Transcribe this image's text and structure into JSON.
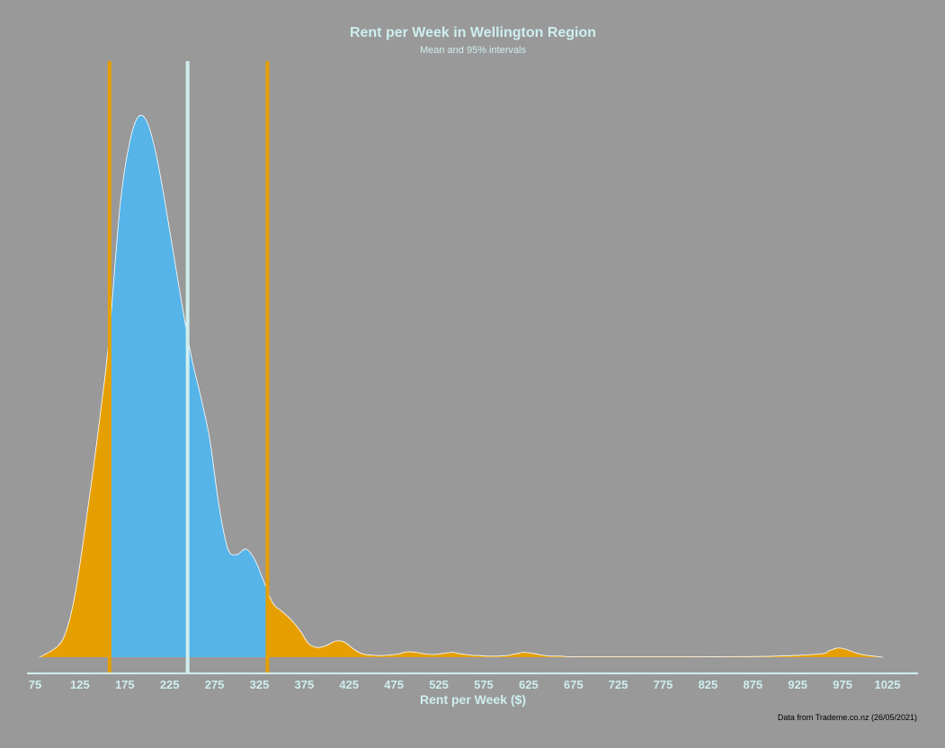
{
  "chart_data": {
    "type": "area",
    "title": "Rent per Week in Wellington Region",
    "subtitle": "Mean and 95% intervals",
    "xlabel": "Rent per Week ($)",
    "ylabel": "",
    "caption": "Data from Trademe.co.nz (26/05/2021)",
    "xlim": [
      75,
      1025
    ],
    "ylim": [
      0,
      1
    ],
    "grid": false,
    "xticks": [
      "75",
      "125",
      "175",
      "225",
      "275",
      "325",
      "375",
      "425",
      "475",
      "525",
      "575",
      "625",
      "675",
      "725",
      "775",
      "825",
      "875",
      "925",
      "975",
      "1025"
    ],
    "density": {
      "x": [
        80,
        100,
        110,
        120,
        130,
        140,
        150,
        155,
        160,
        170,
        180,
        190,
        200,
        210,
        220,
        230,
        240,
        250,
        260,
        270,
        280,
        290,
        300,
        310,
        320,
        330,
        340,
        350,
        360,
        370,
        380,
        390,
        400,
        410,
        420,
        430,
        440,
        450,
        460,
        470,
        480,
        490,
        500,
        510,
        520,
        530,
        540,
        550,
        560,
        570,
        580,
        590,
        600,
        610,
        620,
        630,
        640,
        650,
        660,
        670,
        680,
        690,
        700,
        710,
        720,
        740,
        760,
        800,
        850,
        900,
        950,
        960,
        970,
        980,
        990,
        1000,
        1010,
        1020
      ],
      "y": [
        0.0,
        0.02,
        0.05,
        0.12,
        0.23,
        0.35,
        0.48,
        0.55,
        0.64,
        0.84,
        0.95,
        1.0,
        0.99,
        0.93,
        0.84,
        0.74,
        0.64,
        0.55,
        0.48,
        0.4,
        0.28,
        0.2,
        0.19,
        0.2,
        0.18,
        0.14,
        0.1,
        0.085,
        0.07,
        0.05,
        0.025,
        0.018,
        0.022,
        0.03,
        0.028,
        0.015,
        0.006,
        0.004,
        0.003,
        0.004,
        0.006,
        0.01,
        0.009,
        0.006,
        0.005,
        0.007,
        0.009,
        0.006,
        0.004,
        0.003,
        0.002,
        0.002,
        0.003,
        0.006,
        0.009,
        0.007,
        0.004,
        0.002,
        0.002,
        0.001,
        0.001,
        0.001,
        0.001,
        0.001,
        0.001,
        0.001,
        0.001,
        0.001,
        0.001,
        0.002,
        0.006,
        0.012,
        0.017,
        0.014,
        0.008,
        0.004,
        0.002,
        0.0
      ]
    },
    "mean": 245,
    "interval": [
      160,
      333
    ],
    "colors": {
      "background": "#999999",
      "inner_fill": "#56b4e9",
      "outer_fill": "#e69f00",
      "mean_line": "#cfeeee",
      "interval_line": "#e69f00",
      "outline": "#ffffff",
      "axis": "#cfeeee",
      "text": "#cfeeee"
    }
  }
}
